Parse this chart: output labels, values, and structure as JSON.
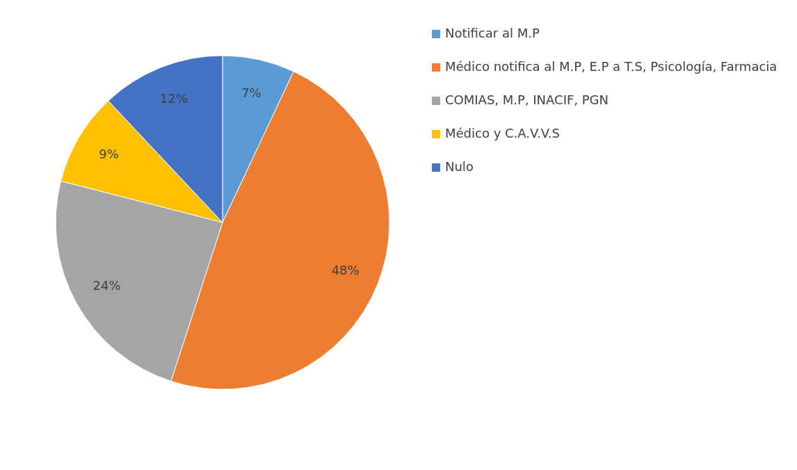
{
  "chart_data": {
    "type": "pie",
    "categories": [
      "Notificar al M.P",
      "Médico notifica al M.P, E.P a T.S, Psicología, Farmacia",
      "COMIAS, M.P, INACIF, PGN",
      "Médico y C.A.V.V.S",
      "Nulo"
    ],
    "values": [
      7,
      48,
      24,
      9,
      12
    ],
    "colors": [
      "#5b9bd5",
      "#ed7d31",
      "#a5a5a5",
      "#ffc000",
      "#4472c4"
    ],
    "value_labels": [
      "7%",
      "48%",
      "24%",
      "9%",
      "12%"
    ],
    "legend": "right"
  }
}
